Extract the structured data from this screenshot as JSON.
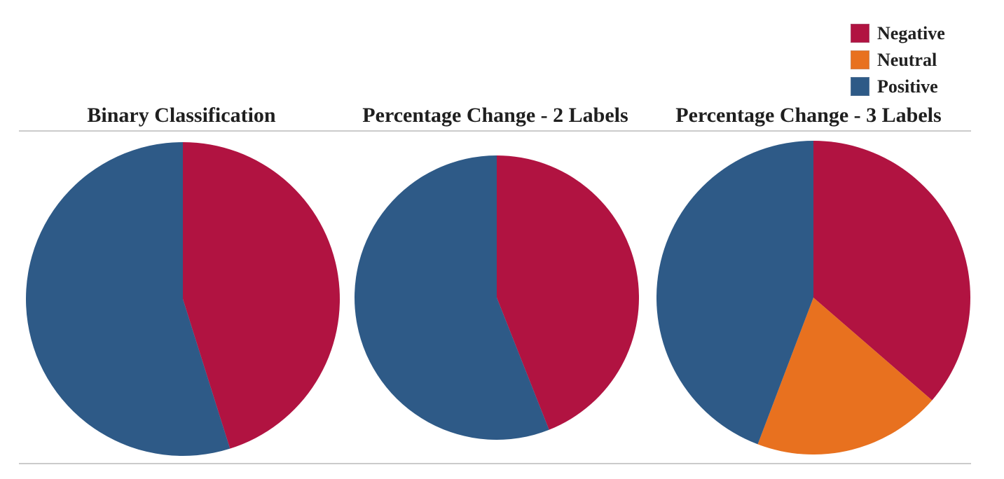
{
  "figure": {
    "background": "#FFFFFF",
    "rule_color": "#CBCBCB",
    "title_color": "#1F1F1F",
    "value_label_color": "#FFFFFF"
  },
  "legend": {
    "position": "top-right",
    "items": [
      {
        "label": "Negative",
        "color": "#B11341"
      },
      {
        "label": "Neutral",
        "color": "#E8711F"
      },
      {
        "label": "Positive",
        "color": "#2E5A87"
      }
    ]
  },
  "chart_data": [
    {
      "type": "pie",
      "title": "Binary Classification",
      "direction": "clockwise",
      "start_angle": "12-oclock",
      "legend_position": "top-right",
      "slices": [
        {
          "label": "Negative",
          "value": 451745,
          "display": "451,745",
          "color": "#B11341"
        },
        {
          "label": "Positive",
          "value": 548894,
          "display": "548,894",
          "color": "#2E5A87"
        }
      ]
    },
    {
      "type": "pie",
      "title": "Percentage Change - 2 Labels",
      "direction": "clockwise",
      "start_angle": "12-oclock",
      "legend_position": "top-right",
      "slices": [
        {
          "label": "Negative",
          "value": 371365,
          "display": "371,365",
          "color": "#B11341"
        },
        {
          "label": "Positive",
          "value": 472556,
          "display": "472,556",
          "color": "#2E5A87"
        }
      ]
    },
    {
      "type": "pie",
      "title": "Percentage Change - 3 Labels",
      "direction": "clockwise",
      "start_angle": "12-oclock",
      "legend_position": "top-right",
      "slices": [
        {
          "label": "Negative",
          "value": 371365,
          "display": "371,365",
          "color": "#B11341"
        },
        {
          "label": "Neutral",
          "value": 198307,
          "display": "198,307",
          "color": "#E8711F"
        },
        {
          "label": "Positive",
          "value": 451745,
          "display": "451,745",
          "color": "#2E5A87"
        }
      ]
    }
  ]
}
